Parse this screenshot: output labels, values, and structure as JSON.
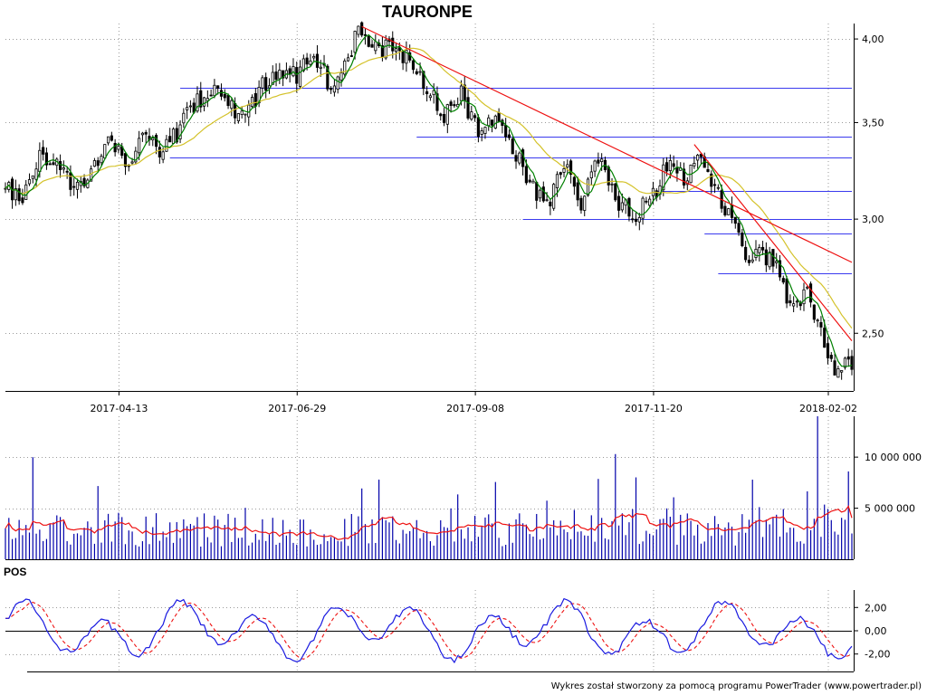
{
  "title": "TAURONPE",
  "footer": "Wykres został stworzony za pomocą programu PowerTrader (www.powertrader.pl)",
  "colors": {
    "candle": "#000000",
    "ma_short": "#008000",
    "ma_long": "#d4c22a",
    "trend_line": "#ee1111",
    "level_line": "#3a3aee",
    "volume_bar": "#0000aa",
    "volume_avg": "#ee1111",
    "oscillator": "#1a1ae0",
    "oscillator_signal": "#ee1111",
    "grid": "#9a9a9a"
  },
  "chart_data": [
    {
      "type": "candlestick",
      "panel": "price",
      "title": "TAURONPE",
      "x_ticks": [
        "2017-04-13",
        "2017-06-29",
        "2017-09-08",
        "2017-11-20",
        "2018-02-02"
      ],
      "y_ticks": [
        "2,50",
        "3,00",
        "3,50",
        "4,00"
      ],
      "ylim": [
        2.28,
        4.1
      ],
      "scale": "log",
      "grid": true,
      "anchors_close": [
        [
          0,
          3.18
        ],
        [
          5,
          3.08
        ],
        [
          10,
          3.32
        ],
        [
          15,
          3.3
        ],
        [
          20,
          3.14
        ],
        [
          25,
          3.24
        ],
        [
          30,
          3.42
        ],
        [
          35,
          3.28
        ],
        [
          40,
          3.4
        ],
        [
          45,
          3.34
        ],
        [
          50,
          3.44
        ],
        [
          55,
          3.6
        ],
        [
          60,
          3.7
        ],
        [
          65,
          3.62
        ],
        [
          70,
          3.52
        ],
        [
          75,
          3.72
        ],
        [
          80,
          3.82
        ],
        [
          85,
          3.78
        ],
        [
          90,
          3.9
        ],
        [
          95,
          3.7
        ],
        [
          100,
          3.88
        ],
        [
          103,
          4.08
        ],
        [
          108,
          3.93
        ],
        [
          113,
          3.96
        ],
        [
          118,
          3.86
        ],
        [
          123,
          3.72
        ],
        [
          128,
          3.55
        ],
        [
          133,
          3.66
        ],
        [
          138,
          3.44
        ],
        [
          143,
          3.52
        ],
        [
          148,
          3.38
        ],
        [
          153,
          3.18
        ],
        [
          158,
          3.05
        ],
        [
          163,
          3.28
        ],
        [
          168,
          3.08
        ],
        [
          173,
          3.3
        ],
        [
          178,
          3.1
        ],
        [
          183,
          3.02
        ],
        [
          188,
          3.08
        ],
        [
          193,
          3.26
        ],
        [
          198,
          3.2
        ],
        [
          203,
          3.32
        ],
        [
          208,
          3.12
        ],
        [
          212,
          3.0
        ],
        [
          216,
          2.82
        ],
        [
          220,
          2.86
        ],
        [
          225,
          2.78
        ],
        [
          229,
          2.62
        ],
        [
          234,
          2.66
        ],
        [
          238,
          2.5
        ],
        [
          242,
          2.33
        ],
        [
          244,
          2.38
        ]
      ],
      "ma_short_period": 5,
      "ma_long_period": 21,
      "level_lines": [
        {
          "y": 3.7,
          "x_from": 51
        },
        {
          "y": 3.31,
          "x_from": 48
        },
        {
          "y": 3.42,
          "x_from": 120
        },
        {
          "y": 3.0,
          "x_from": 151
        },
        {
          "y": 3.14,
          "x_from": 190
        },
        {
          "y": 2.93,
          "x_from": 204
        },
        {
          "y": 2.75,
          "x_from": 208
        }
      ],
      "trend_lines": [
        {
          "from": [
            104,
            4.08
          ],
          "to": [
            247,
            2.8
          ]
        },
        {
          "from": [
            201,
            3.38
          ],
          "to": [
            247,
            2.47
          ]
        }
      ]
    },
    {
      "type": "bar",
      "panel": "volume",
      "y_ticks": [
        "5 000 000",
        "10 000 000"
      ],
      "ylim": [
        0,
        14000000
      ],
      "moving_average": true,
      "grid": true
    },
    {
      "type": "line",
      "panel": "oscillator",
      "label": "POS",
      "y_ticks": [
        "2,00",
        "0,00",
        "-2,00"
      ],
      "ylim": [
        -3.5,
        3.5
      ],
      "series": [
        "oscillator",
        "signal"
      ],
      "zero_line": true,
      "grid": true
    }
  ]
}
